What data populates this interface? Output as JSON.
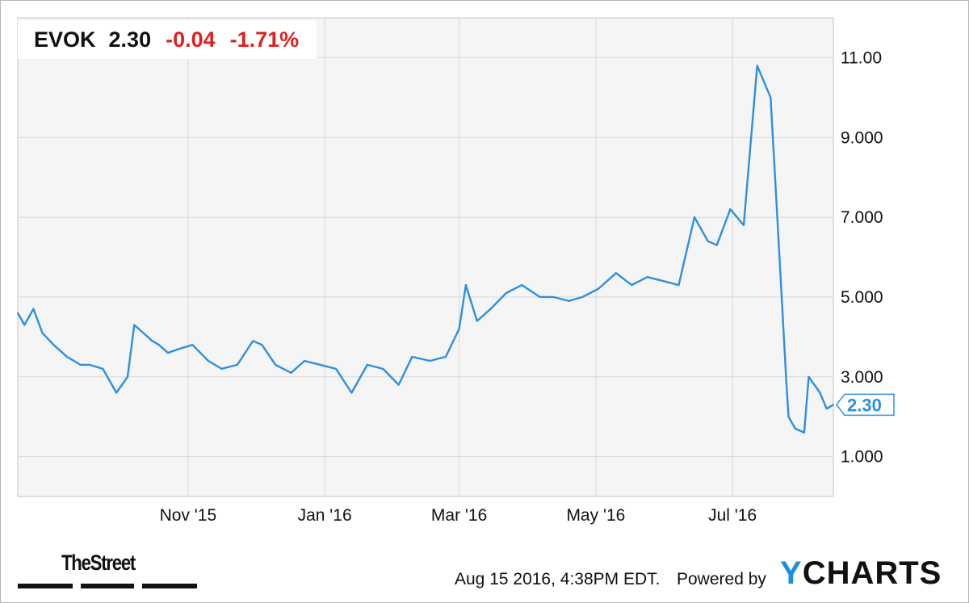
{
  "ticker": {
    "symbol": "EVOK",
    "price": "2.30",
    "change": "-0.04",
    "change_pct": "-1.71%"
  },
  "footer": {
    "timestamp": "Aug 15 2016, 4:38PM EDT.",
    "powered_by": "Powered by",
    "ycharts_logo_y": "Y",
    "ycharts_logo_rest": "CHARTS",
    "thestreet_logo": "TheStreet"
  },
  "colors": {
    "line": "#2e8fe0",
    "negative": "#e02020",
    "grid": "#d8d8d8",
    "plot_bg": "#f5f5f5"
  },
  "chart_data": {
    "type": "line",
    "title": "",
    "xlabel": "",
    "ylabel": "",
    "x_tick_labels": [
      "Nov '15",
      "Jan '16",
      "Mar '16",
      "May '16",
      "Jul '16"
    ],
    "y_tick_labels": [
      "1.000",
      "3.000",
      "5.000",
      "7.000",
      "9.000",
      "11.00"
    ],
    "ylim": [
      0,
      12
    ],
    "grid": true,
    "last_value_label": "2.30",
    "series": [
      {
        "x": [
          "2015-08-17",
          "2015-08-20",
          "2015-08-24",
          "2015-08-28",
          "2015-09-02",
          "2015-09-08",
          "2015-09-14",
          "2015-09-18",
          "2015-09-24",
          "2015-09-30",
          "2015-10-05",
          "2015-10-08",
          "2015-10-12",
          "2015-10-16",
          "2015-10-19",
          "2015-10-23",
          "2015-10-28",
          "2015-11-03",
          "2015-11-10",
          "2015-11-16",
          "2015-11-23",
          "2015-11-30",
          "2015-12-04",
          "2015-12-10",
          "2015-12-17",
          "2015-12-23",
          "2015-12-30",
          "2016-01-06",
          "2016-01-13",
          "2016-01-20",
          "2016-01-27",
          "2016-02-03",
          "2016-02-09",
          "2016-02-17",
          "2016-02-24",
          "2016-03-01",
          "2016-03-04",
          "2016-03-09",
          "2016-03-15",
          "2016-03-22",
          "2016-03-29",
          "2016-04-06",
          "2016-04-12",
          "2016-04-19",
          "2016-04-25",
          "2016-05-02",
          "2016-05-10",
          "2016-05-17",
          "2016-05-24",
          "2016-05-31",
          "2016-06-07",
          "2016-06-14",
          "2016-06-20",
          "2016-06-24",
          "2016-06-30",
          "2016-07-06",
          "2016-07-12",
          "2016-07-18",
          "2016-07-21",
          "2016-07-25",
          "2016-07-26",
          "2016-07-29",
          "2016-08-02",
          "2016-08-04",
          "2016-08-09",
          "2016-08-12",
          "2016-08-15"
        ],
        "values": [
          4.6,
          4.3,
          4.7,
          4.1,
          3.8,
          3.5,
          3.3,
          3.3,
          3.2,
          2.6,
          3.0,
          4.3,
          4.1,
          3.9,
          3.8,
          3.6,
          3.7,
          3.8,
          3.4,
          3.2,
          3.3,
          3.9,
          3.8,
          3.3,
          3.1,
          3.4,
          3.3,
          3.2,
          2.6,
          3.3,
          3.2,
          2.8,
          3.5,
          3.4,
          3.5,
          4.2,
          5.3,
          4.4,
          4.7,
          5.1,
          5.3,
          5.0,
          5.0,
          4.9,
          5.0,
          5.2,
          5.6,
          5.3,
          5.5,
          5.4,
          5.3,
          7.0,
          6.4,
          6.3,
          7.2,
          6.8,
          10.8,
          10.0,
          7.0,
          2.9,
          2.0,
          1.7,
          1.6,
          3.0,
          2.6,
          2.2,
          2.3
        ]
      }
    ]
  }
}
